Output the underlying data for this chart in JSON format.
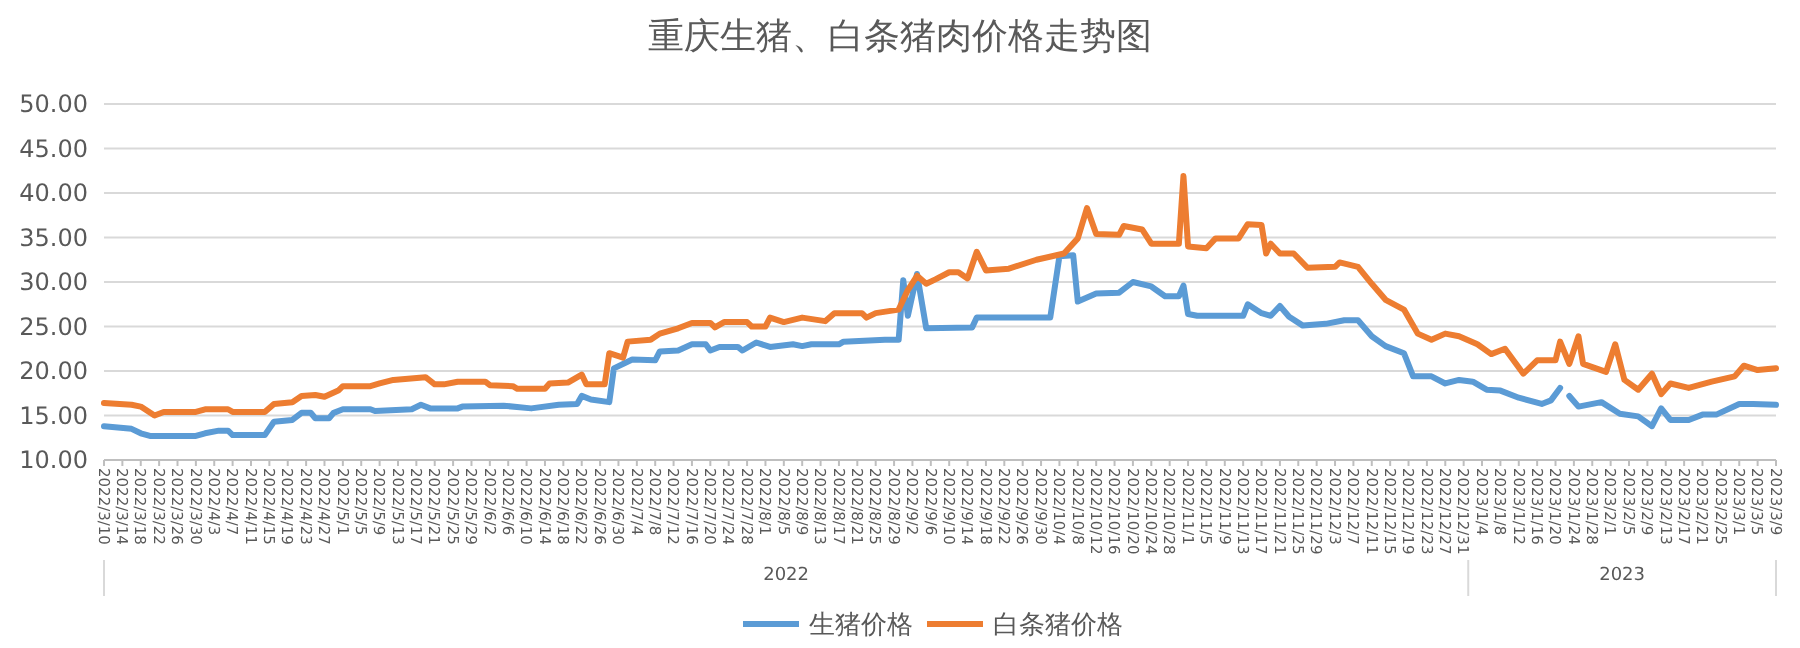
{
  "chart_data": {
    "type": "line",
    "title": "重庆生猪、白条猪肉价格走势图",
    "annotations": [
      "2022",
      "2023"
    ],
    "xlim": [
      "2022-03-10",
      "2023-03-09"
    ],
    "xticks": [
      {
        "value": "2022-03-10",
        "label": "2022/3/10"
      },
      {
        "value": "2022-03-14",
        "label": "2022/3/14"
      },
      {
        "value": "2022-03-18",
        "label": "2022/3/18"
      },
      {
        "value": "2022-03-22",
        "label": "2022/3/22"
      },
      {
        "value": "2022-03-26",
        "label": "2022/3/26"
      },
      {
        "value": "2022-03-30",
        "label": "2022/3/30"
      },
      {
        "value": "2022-04-03",
        "label": "2022/4/3"
      },
      {
        "value": "2022-04-07",
        "label": "2022/4/7"
      },
      {
        "value": "2022-04-11",
        "label": "2022/4/11"
      },
      {
        "value": "2022-04-15",
        "label": "2022/4/15"
      },
      {
        "value": "2022-04-19",
        "label": "2022/4/19"
      },
      {
        "value": "2022-04-23",
        "label": "2022/4/23"
      },
      {
        "value": "2022-04-27",
        "label": "2022/4/27"
      },
      {
        "value": "2022-05-01",
        "label": "2022/5/1"
      },
      {
        "value": "2022-05-05",
        "label": "2022/5/5"
      },
      {
        "value": "2022-05-09",
        "label": "2022/5/9"
      },
      {
        "value": "2022-05-13",
        "label": "2022/5/13"
      },
      {
        "value": "2022-05-17",
        "label": "2022/5/17"
      },
      {
        "value": "2022-05-21",
        "label": "2022/5/21"
      },
      {
        "value": "2022-05-25",
        "label": "2022/5/25"
      },
      {
        "value": "2022-05-29",
        "label": "2022/5/29"
      },
      {
        "value": "2022-06-02",
        "label": "2022/6/2"
      },
      {
        "value": "2022-06-06",
        "label": "2022/6/6"
      },
      {
        "value": "2022-06-10",
        "label": "2022/6/10"
      },
      {
        "value": "2022-06-14",
        "label": "2022/6/14"
      },
      {
        "value": "2022-06-18",
        "label": "2022/6/18"
      },
      {
        "value": "2022-06-22",
        "label": "2022/6/22"
      },
      {
        "value": "2022-06-26",
        "label": "2022/6/26"
      },
      {
        "value": "2022-06-30",
        "label": "2022/6/30"
      },
      {
        "value": "2022-07-04",
        "label": "2022/7/4"
      },
      {
        "value": "2022-07-08",
        "label": "2022/7/8"
      },
      {
        "value": "2022-07-12",
        "label": "2022/7/12"
      },
      {
        "value": "2022-07-16",
        "label": "2022/7/16"
      },
      {
        "value": "2022-07-20",
        "label": "2022/7/20"
      },
      {
        "value": "2022-07-24",
        "label": "2022/7/24"
      },
      {
        "value": "2022-07-28",
        "label": "2022/7/28"
      },
      {
        "value": "2022-08-01",
        "label": "2022/8/1"
      },
      {
        "value": "2022-08-05",
        "label": "2022/8/5"
      },
      {
        "value": "2022-08-09",
        "label": "2022/8/9"
      },
      {
        "value": "2022-08-13",
        "label": "2022/8/13"
      },
      {
        "value": "2022-08-17",
        "label": "2022/8/17"
      },
      {
        "value": "2022-08-21",
        "label": "2022/8/21"
      },
      {
        "value": "2022-08-25",
        "label": "2022/8/25"
      },
      {
        "value": "2022-08-29",
        "label": "2022/8/29"
      },
      {
        "value": "2022-09-02",
        "label": "2022/9/2"
      },
      {
        "value": "2022-09-06",
        "label": "2022/9/6"
      },
      {
        "value": "2022-09-10",
        "label": "2022/9/10"
      },
      {
        "value": "2022-09-14",
        "label": "2022/9/14"
      },
      {
        "value": "2022-09-18",
        "label": "2022/9/18"
      },
      {
        "value": "2022-09-22",
        "label": "2022/9/22"
      },
      {
        "value": "2022-09-26",
        "label": "2022/9/26"
      },
      {
        "value": "2022-09-30",
        "label": "2022/9/30"
      },
      {
        "value": "2022-10-04",
        "label": "2022/10/4"
      },
      {
        "value": "2022-10-08",
        "label": "2022/10/8"
      },
      {
        "value": "2022-10-12",
        "label": "2022/10/12"
      },
      {
        "value": "2022-10-16",
        "label": "2022/10/16"
      },
      {
        "value": "2022-10-20",
        "label": "2022/10/20"
      },
      {
        "value": "2022-10-24",
        "label": "2022/10/24"
      },
      {
        "value": "2022-10-28",
        "label": "2022/10/28"
      },
      {
        "value": "2022-11-01",
        "label": "2022/11/1"
      },
      {
        "value": "2022-11-05",
        "label": "2022/11/5"
      },
      {
        "value": "2022-11-09",
        "label": "2022/11/9"
      },
      {
        "value": "2022-11-13",
        "label": "2022/11/13"
      },
      {
        "value": "2022-11-17",
        "label": "2022/11/17"
      },
      {
        "value": "2022-11-21",
        "label": "2022/11/21"
      },
      {
        "value": "2022-11-25",
        "label": "2022/11/25"
      },
      {
        "value": "2022-11-29",
        "label": "2022/11/29"
      },
      {
        "value": "2022-12-03",
        "label": "2022/12/3"
      },
      {
        "value": "2022-12-07",
        "label": "2022/12/7"
      },
      {
        "value": "2022-12-11",
        "label": "2022/12/11"
      },
      {
        "value": "2022-12-15",
        "label": "2022/12/15"
      },
      {
        "value": "2022-12-19",
        "label": "2022/12/19"
      },
      {
        "value": "2022-12-23",
        "label": "2022/12/23"
      },
      {
        "value": "2022-12-27",
        "label": "2022/12/27"
      },
      {
        "value": "2022-12-31",
        "label": "2022/12/31"
      },
      {
        "value": "2023-01-04",
        "label": "2023/1/4"
      },
      {
        "value": "2023-01-08",
        "label": "2023/1/8"
      },
      {
        "value": "2023-01-12",
        "label": "2023/1/12"
      },
      {
        "value": "2023-01-16",
        "label": "2023/1/16"
      },
      {
        "value": "2023-01-20",
        "label": "2023/1/20"
      },
      {
        "value": "2023-01-24",
        "label": "2023/1/24"
      },
      {
        "value": "2023-01-28",
        "label": "2023/1/28"
      },
      {
        "value": "2023-02-01",
        "label": "2023/2/1"
      },
      {
        "value": "2023-02-05",
        "label": "2023/2/5"
      },
      {
        "value": "2023-02-09",
        "label": "2023/2/9"
      },
      {
        "value": "2023-02-13",
        "label": "2023/2/13"
      },
      {
        "value": "2023-02-17",
        "label": "2023/2/17"
      },
      {
        "value": "2023-02-21",
        "label": "2023/2/21"
      },
      {
        "value": "2023-02-25",
        "label": "2023/2/25"
      },
      {
        "value": "2023-03-01",
        "label": "2023/3/1"
      },
      {
        "value": "2023-03-05",
        "label": "2023/3/5"
      },
      {
        "value": "2023-03-09",
        "label": "2023/3/9"
      }
    ],
    "ylim": [
      10,
      50
    ],
    "yticks": [
      {
        "value": 10,
        "label": "10.00"
      },
      {
        "value": 15,
        "label": "15.00"
      },
      {
        "value": 20,
        "label": "20.00"
      },
      {
        "value": 25,
        "label": "25.00"
      },
      {
        "value": 30,
        "label": "30.00"
      },
      {
        "value": 35,
        "label": "35.00"
      },
      {
        "value": 40,
        "label": "40.00"
      },
      {
        "value": 45,
        "label": "45.00"
      },
      {
        "value": 50,
        "label": "50.00"
      }
    ],
    "grid": "y",
    "legend": "bottom",
    "marker": "none",
    "line_style": "solid",
    "series": [
      {
        "name": "生猪价格",
        "color": "#5b9bd5",
        "x": [
          "2022-03-10",
          "2022-03-16",
          "2022-03-18",
          "2022-03-20",
          "2022-03-30",
          "2022-04-01",
          "2022-04-04",
          "2022-04-06",
          "2022-04-07",
          "2022-04-14",
          "2022-04-16",
          "2022-04-20",
          "2022-04-22",
          "2022-04-24",
          "2022-04-25",
          "2022-04-28",
          "2022-04-29",
          "2022-05-01",
          "2022-05-07",
          "2022-05-08",
          "2022-05-16",
          "2022-05-18",
          "2022-05-20",
          "2022-05-26",
          "2022-05-27",
          "2022-06-05",
          "2022-06-11",
          "2022-06-17",
          "2022-06-21",
          "2022-06-22",
          "2022-06-24",
          "2022-06-28",
          "2022-06-29",
          "2022-07-03",
          "2022-07-08",
          "2022-07-09",
          "2022-07-13",
          "2022-07-16",
          "2022-07-19",
          "2022-07-20",
          "2022-07-22",
          "2022-07-26",
          "2022-07-27",
          "2022-07-30",
          "2022-08-02",
          "2022-08-07",
          "2022-08-09",
          "2022-08-11",
          "2022-08-17",
          "2022-08-18",
          "2022-08-27",
          "2022-08-30",
          "2022-08-31",
          "2022-09-01",
          "2022-09-03",
          "2022-09-05",
          "2022-09-15",
          "2022-09-16",
          "2022-10-02",
          "2022-10-04",
          "2022-10-07",
          "2022-10-08",
          "2022-10-12",
          "2022-10-17",
          "2022-10-20",
          "2022-10-24",
          "2022-10-27",
          "2022-10-30",
          "2022-10-31",
          "2022-11-01",
          "2022-11-03",
          "2022-11-13",
          "2022-11-14",
          "2022-11-17",
          "2022-11-19",
          "2022-11-21",
          "2022-11-23",
          "2022-11-26",
          "2022-12-01",
          "2022-12-05",
          "2022-12-08",
          "2022-12-11",
          "2022-12-14",
          "2022-12-18",
          "2022-12-20",
          "2022-12-24",
          "2022-12-27",
          "2022-12-30",
          "2023-01-02",
          "2023-01-05",
          "2023-01-08",
          "2023-01-12",
          "2023-01-17",
          "2023-01-19",
          "2023-01-21",
          "2023-01-22",
          "2023-01-23",
          "2023-01-25",
          "2023-01-30",
          "2023-02-03",
          "2023-02-07",
          "2023-02-10",
          "2023-02-12",
          "2023-02-14",
          "2023-02-18",
          "2023-02-21",
          "2023-02-24",
          "2023-03-01",
          "2023-03-04",
          "2023-03-09"
        ],
        "values": [
          13.8,
          13.5,
          13.0,
          12.7,
          12.7,
          13.0,
          13.3,
          13.3,
          12.8,
          12.8,
          14.3,
          14.5,
          15.3,
          15.3,
          14.7,
          14.7,
          15.3,
          15.7,
          15.7,
          15.5,
          15.7,
          16.2,
          15.8,
          15.8,
          16.0,
          16.1,
          15.8,
          16.2,
          16.3,
          17.2,
          16.8,
          16.5,
          20.3,
          21.3,
          21.2,
          22.2,
          22.3,
          23.0,
          23.0,
          22.3,
          22.7,
          22.7,
          22.3,
          23.2,
          22.7,
          23.0,
          22.8,
          23.0,
          23.0,
          23.3,
          23.5,
          23.5,
          30.2,
          26.2,
          30.9,
          24.8,
          24.9,
          26.0,
          26.0,
          32.9,
          33.0,
          27.8,
          28.7,
          28.8,
          30.0,
          29.5,
          28.4,
          28.4,
          29.6,
          26.4,
          26.2,
          26.2,
          27.5,
          26.5,
          26.2,
          27.3,
          26.1,
          25.1,
          25.3,
          25.7,
          25.7,
          23.9,
          22.8,
          22.0,
          19.4,
          19.4,
          18.6,
          19.0,
          18.8,
          17.9,
          17.8,
          17.0,
          16.3,
          16.7,
          18.1,
          null,
          17.2,
          16.0,
          16.5,
          15.2,
          14.9,
          13.8,
          15.8,
          14.5,
          14.5,
          15.1,
          15.1,
          16.3,
          16.3,
          16.2
        ]
      },
      {
        "name": "白条猪价格",
        "color": "#ed7d31",
        "x": [
          "2022-03-10",
          "2022-03-16",
          "2022-03-18",
          "2022-03-21",
          "2022-03-23",
          "2022-03-30",
          "2022-04-01",
          "2022-04-06",
          "2022-04-07",
          "2022-04-14",
          "2022-04-16",
          "2022-04-20",
          "2022-04-22",
          "2022-04-25",
          "2022-04-27",
          "2022-04-30",
          "2022-05-01",
          "2022-05-07",
          "2022-05-09",
          "2022-05-12",
          "2022-05-19",
          "2022-05-21",
          "2022-05-23",
          "2022-05-26",
          "2022-06-01",
          "2022-06-02",
          "2022-06-07",
          "2022-06-08",
          "2022-06-14",
          "2022-06-15",
          "2022-06-19",
          "2022-06-22",
          "2022-06-23",
          "2022-06-27",
          "2022-06-28",
          "2022-07-01",
          "2022-07-02",
          "2022-07-07",
          "2022-07-09",
          "2022-07-13",
          "2022-07-16",
          "2022-07-20",
          "2022-07-21",
          "2022-07-23",
          "2022-07-28",
          "2022-07-29",
          "2022-08-01",
          "2022-08-02",
          "2022-08-05",
          "2022-08-09",
          "2022-08-14",
          "2022-08-16",
          "2022-08-22",
          "2022-08-23",
          "2022-08-25",
          "2022-08-30",
          "2022-09-01",
          "2022-09-03",
          "2022-09-05",
          "2022-09-07",
          "2022-09-10",
          "2022-09-12",
          "2022-09-14",
          "2022-09-16",
          "2022-09-18",
          "2022-09-23",
          "2022-09-29",
          "2022-10-05",
          "2022-10-08",
          "2022-10-10",
          "2022-10-12",
          "2022-10-17",
          "2022-10-18",
          "2022-10-22",
          "2022-10-24",
          "2022-10-30",
          "2022-10-31",
          "2022-11-01",
          "2022-11-05",
          "2022-11-07",
          "2022-11-12",
          "2022-11-14",
          "2022-11-17",
          "2022-11-18",
          "2022-11-19",
          "2022-11-21",
          "2022-11-24",
          "2022-11-27",
          "2022-12-03",
          "2022-12-04",
          "2022-12-08",
          "2022-12-11",
          "2022-12-14",
          "2022-12-18",
          "2022-12-20",
          "2022-12-21",
          "2022-12-24",
          "2022-12-27",
          "2022-12-30",
          "2023-01-03",
          "2023-01-06",
          "2023-01-09",
          "2023-01-13",
          "2023-01-16",
          "2023-01-20",
          "2023-01-21",
          "2023-01-23",
          "2023-01-25",
          "2023-01-26",
          "2023-01-31",
          "2023-02-02",
          "2023-02-04",
          "2023-02-07",
          "2023-02-10",
          "2023-02-12",
          "2023-02-14",
          "2023-02-18",
          "2023-02-23",
          "2023-02-28",
          "2023-03-02",
          "2023-03-05",
          "2023-03-09"
        ],
        "values": [
          16.4,
          16.2,
          16.0,
          15.0,
          15.4,
          15.4,
          15.7,
          15.7,
          15.4,
          15.4,
          16.3,
          16.5,
          17.2,
          17.3,
          17.1,
          17.8,
          18.3,
          18.3,
          18.6,
          19.0,
          19.3,
          18.5,
          18.5,
          18.8,
          18.8,
          18.4,
          18.3,
          18.0,
          18.0,
          18.6,
          18.7,
          19.6,
          18.5,
          18.5,
          22.0,
          21.5,
          23.3,
          23.5,
          24.2,
          24.8,
          25.4,
          25.4,
          24.9,
          25.5,
          25.5,
          25.0,
          25.0,
          26.0,
          25.5,
          26.0,
          25.6,
          26.5,
          26.5,
          26.0,
          26.5,
          26.9,
          29.1,
          30.7,
          29.8,
          30.3,
          31.1,
          31.1,
          30.4,
          33.4,
          31.3,
          31.5,
          32.5,
          33.2,
          34.9,
          38.3,
          35.4,
          35.3,
          36.3,
          35.9,
          34.3,
          34.3,
          41.9,
          34.0,
          33.8,
          34.9,
          34.9,
          36.5,
          36.4,
          33.2,
          34.3,
          33.2,
          33.2,
          31.6,
          31.7,
          32.2,
          31.7,
          29.8,
          28.0,
          26.9,
          25.1,
          24.2,
          23.5,
          24.2,
          23.9,
          23.0,
          21.9,
          22.5,
          19.7,
          21.2,
          21.2,
          23.3,
          20.8,
          23.9,
          20.8,
          19.9,
          23.0,
          19.0,
          17.9,
          19.7,
          17.4,
          18.6,
          18.1,
          18.8,
          19.4,
          20.6,
          20.1,
          20.3
        ]
      }
    ]
  }
}
